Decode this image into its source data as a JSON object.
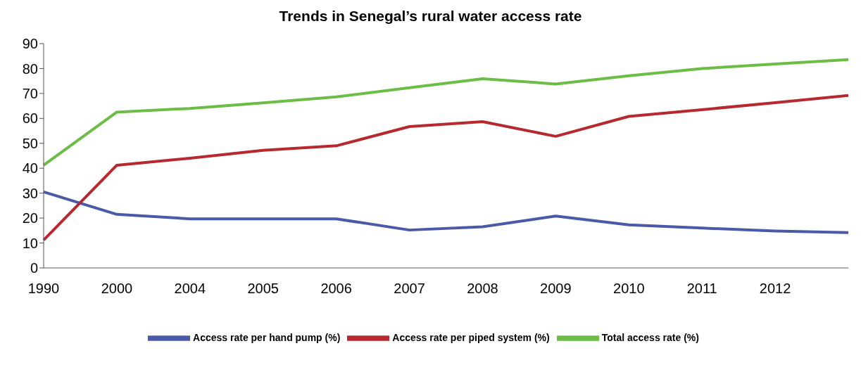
{
  "chart_data": {
    "type": "line",
    "title": "Trends in Senegal’s rural water access rate",
    "categories": [
      "1990",
      "2000",
      "2004",
      "2005",
      "2006",
      "2007",
      "2008",
      "2009",
      "2010",
      "2011",
      "2012",
      null
    ],
    "series": [
      {
        "name": "Access rate per hand pump (%)",
        "color": "#4a5aa8",
        "values": [
          30.5,
          21.5,
          19.7,
          19.7,
          19.7,
          15.2,
          16.5,
          20.8,
          17.3,
          16,
          14.8,
          14.2
        ]
      },
      {
        "name": "Access rate per piped system (%)",
        "color": "#b8292f",
        "values": [
          11.2,
          41.2,
          44,
          47.2,
          49,
          56.7,
          58.7,
          52.8,
          60.8,
          63.5,
          66.3,
          69.2
        ]
      },
      {
        "name": "Total access rate (%)",
        "color": "#6cbd45",
        "values": [
          41.2,
          62.5,
          64,
          66.2,
          68.6,
          72.3,
          75.9,
          73.8,
          77.1,
          80,
          81.8,
          83.6
        ]
      }
    ],
    "ylim": [
      0,
      90
    ],
    "yticks": [
      0,
      10,
      20,
      30,
      40,
      50,
      60,
      70,
      80,
      90
    ],
    "grid": false,
    "legend": "bottom"
  }
}
